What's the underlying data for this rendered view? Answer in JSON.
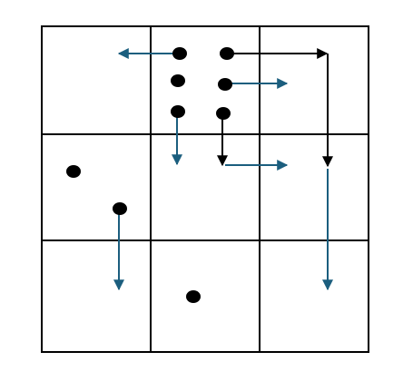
{
  "colors": {
    "background": "#ffffff",
    "grid": "#000000",
    "dot": "#000000",
    "arrow_primary": "#1b5e7e",
    "arrow_secondary": "#000000"
  },
  "grid": {
    "rows": 3,
    "cols": 3
  },
  "dots": [
    {
      "id": "dot-1"
    },
    {
      "id": "dot-2"
    },
    {
      "id": "dot-3"
    },
    {
      "id": "dot-4"
    },
    {
      "id": "dot-5"
    },
    {
      "id": "dot-6"
    },
    {
      "id": "dot-7"
    },
    {
      "id": "dot-8"
    },
    {
      "id": "dot-9"
    }
  ],
  "arrows": [
    {
      "id": "arrow-1",
      "style": "primary"
    },
    {
      "id": "arrow-2",
      "style": "secondary"
    },
    {
      "id": "arrow-3",
      "style": "primary"
    },
    {
      "id": "arrow-4",
      "style": "primary"
    },
    {
      "id": "arrow-5",
      "style": "secondary"
    },
    {
      "id": "arrow-6",
      "style": "primary"
    },
    {
      "id": "arrow-7",
      "style": "primary"
    },
    {
      "id": "arrow-8",
      "style": "primary"
    }
  ]
}
